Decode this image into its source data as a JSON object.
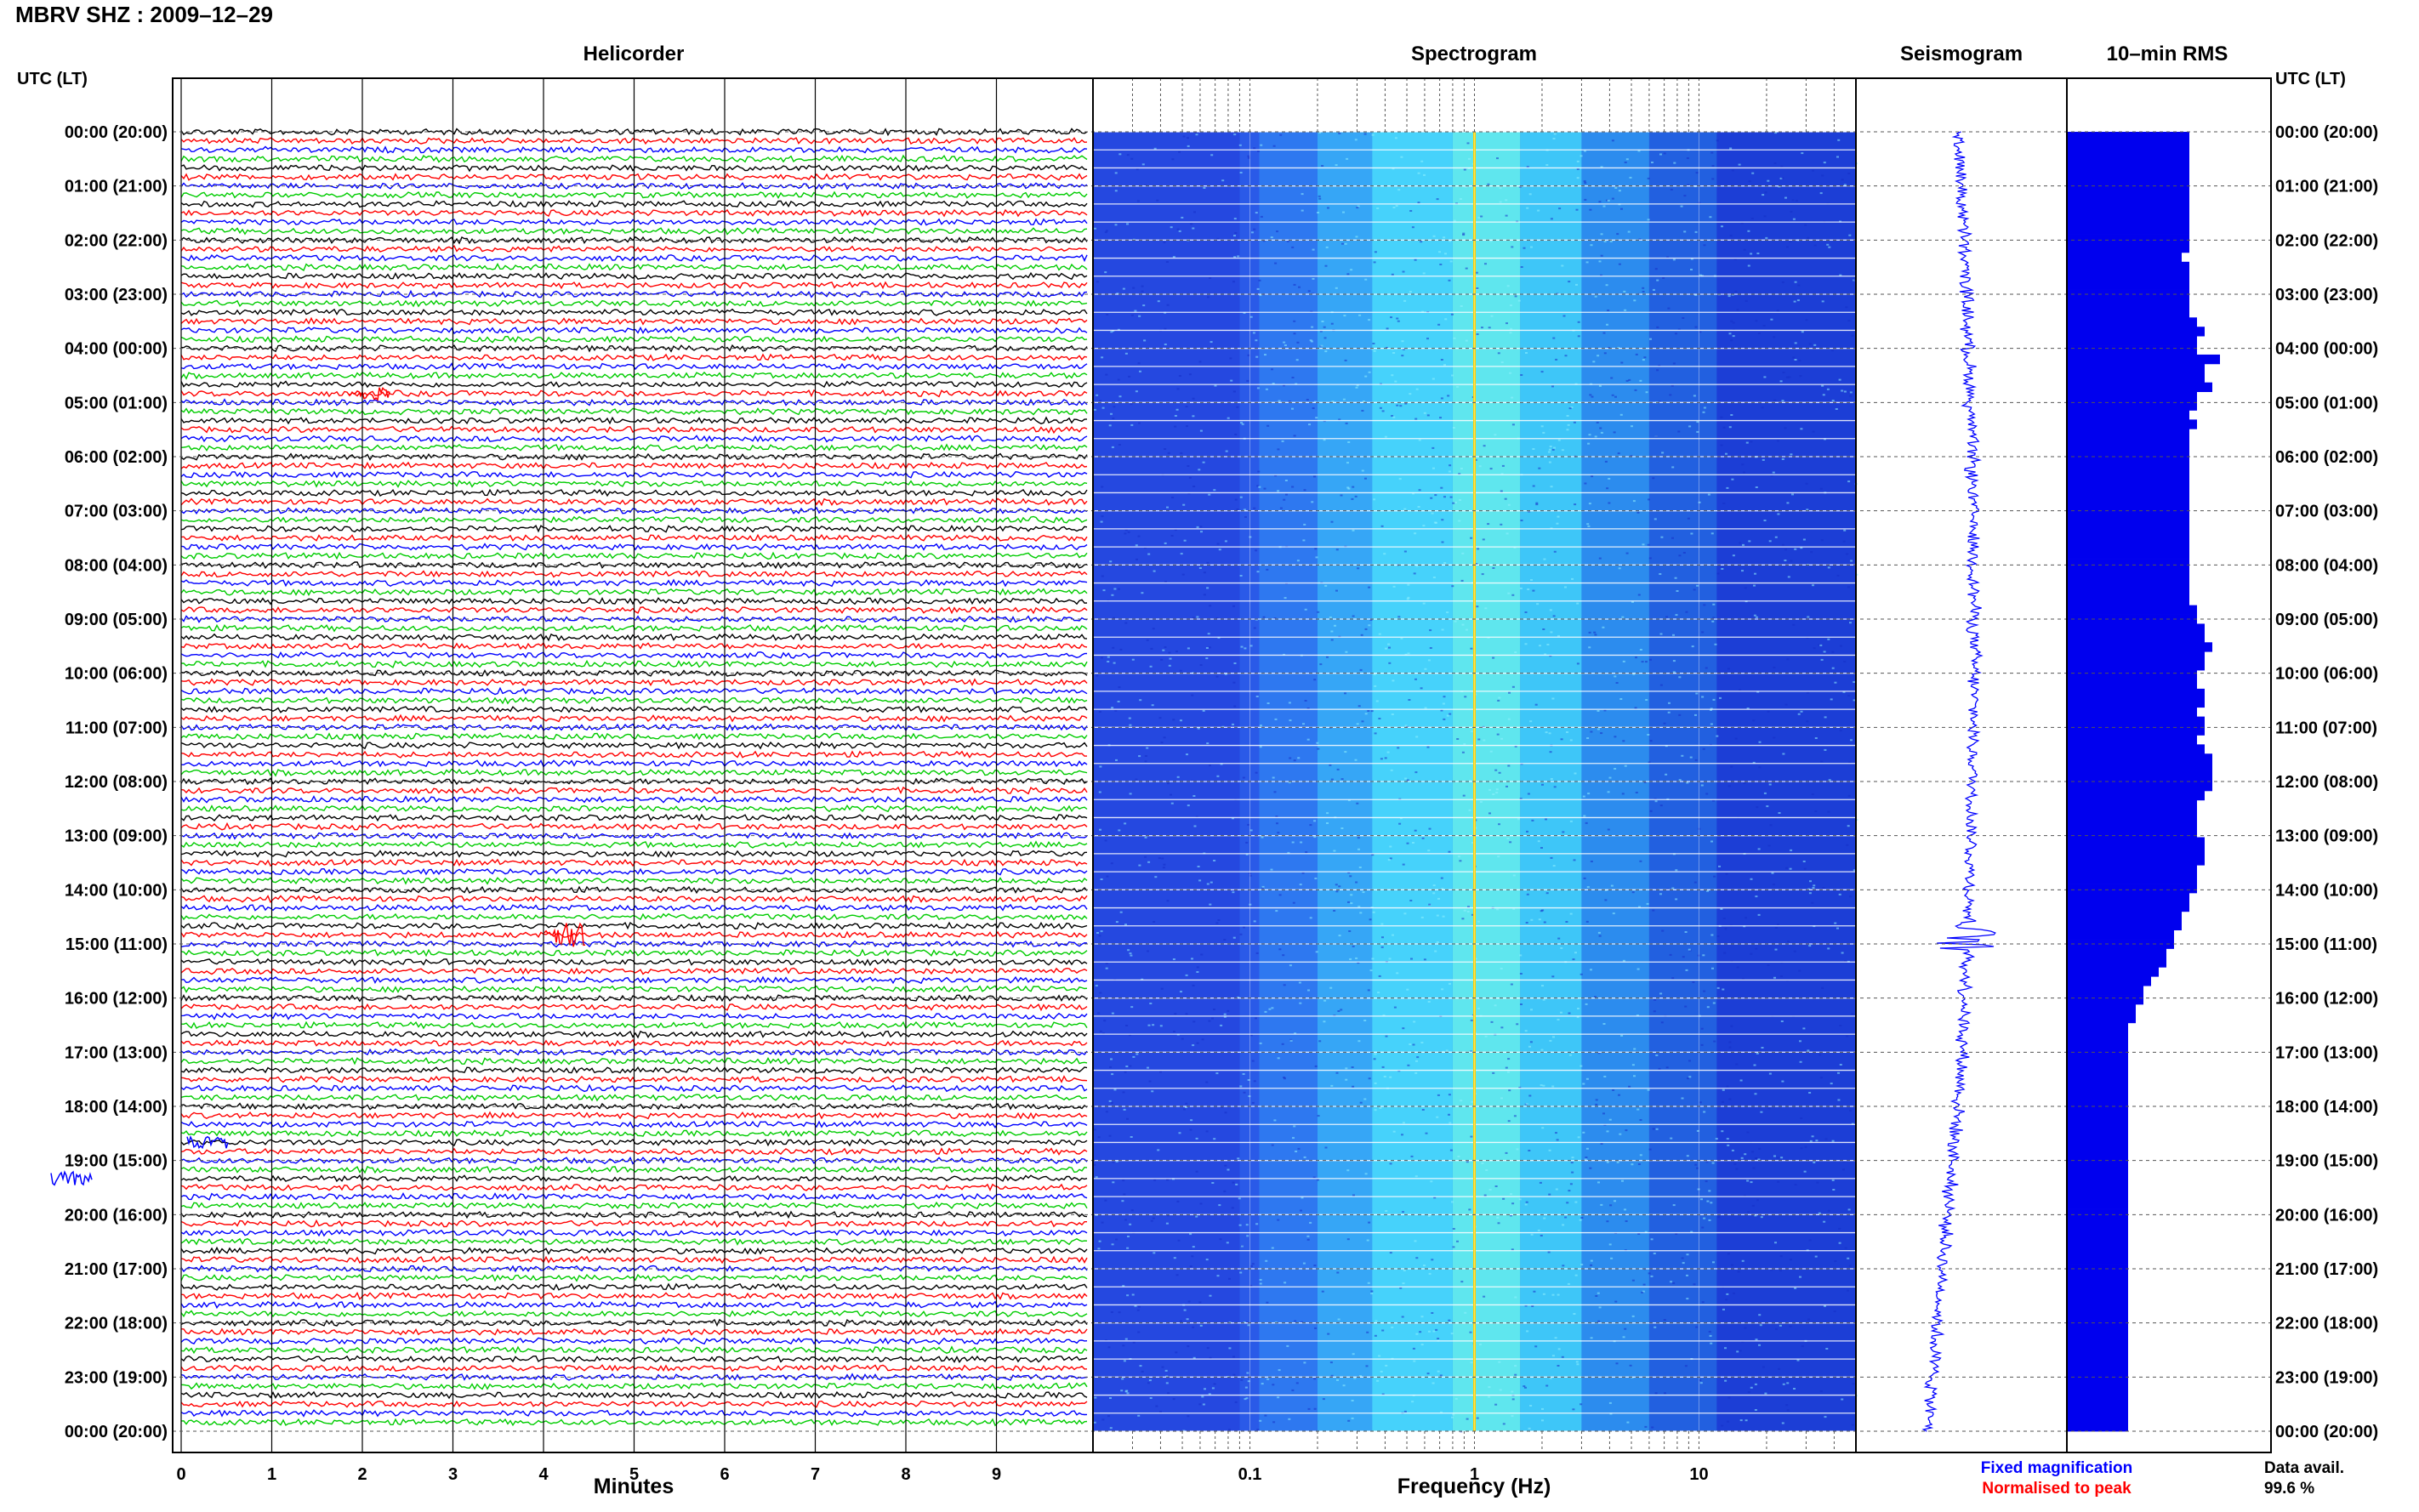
{
  "header": {
    "title": "MBRV SHZ : 2009–12–29",
    "utc_label_left": "UTC (LT)",
    "utc_label_right": "UTC (LT)"
  },
  "panels": {
    "helicorder": "Helicorder",
    "spectrogram": "Spectrogram",
    "seismogram": "Seismogram",
    "rms": "10–min RMS"
  },
  "legend": {
    "fixed": "Fixed magnification",
    "normalised": "Normalised to peak",
    "avail_label": "Data avail.",
    "avail_value": "99.6 %"
  },
  "colors": {
    "trace_cycle": [
      "#000000",
      "#ff0000",
      "#0000ff",
      "#00cc00"
    ],
    "fixed_magnification": "#0000ff",
    "normalised_to_peak": "#ff0000",
    "rms_bar": "#0000ee",
    "spectrogram_low": "#1a2fd0",
    "spectrogram_high": "#40e0ff",
    "spectral_line": "#ffd000"
  },
  "chart_data": [
    {
      "type": "line",
      "title": "Helicorder",
      "xlabel": "Minutes",
      "xlim": [
        0,
        10
      ],
      "xticks": [
        "0",
        "1",
        "2",
        "3",
        "4",
        "5",
        "6",
        "7",
        "8",
        "9"
      ],
      "time_labels": [
        "00:00 (20:00)",
        "01:00 (21:00)",
        "02:00 (22:00)",
        "03:00 (23:00)",
        "04:00 (00:00)",
        "05:00 (01:00)",
        "06:00 (02:00)",
        "07:00 (03:00)",
        "08:00 (04:00)",
        "09:00 (05:00)",
        "10:00 (06:00)",
        "11:00 (07:00)",
        "12:00 (08:00)",
        "13:00 (09:00)",
        "14:00 (10:00)",
        "15:00 (11:00)",
        "16:00 (12:00)",
        "17:00 (13:00)",
        "18:00 (14:00)",
        "19:00 (15:00)",
        "20:00 (16:00)",
        "21:00 (17:00)",
        "22:00 (18:00)",
        "23:00 (19:00)",
        "00:00 (20:00)"
      ],
      "traces_per_hour": 6,
      "grid": true
    },
    {
      "type": "heatmap",
      "title": "Spectrogram",
      "xlabel": "Frequency (Hz)",
      "xscale": "log",
      "xlim": [
        0.02,
        50
      ],
      "xticks": [
        "0.1",
        "1",
        "10"
      ],
      "spectral_line_hz": 1.0
    },
    {
      "type": "line",
      "title": "Seismogram"
    },
    {
      "type": "bar",
      "title": "10–min RMS",
      "orientation": "horizontal",
      "values": [
        8,
        8,
        8,
        8,
        8,
        8,
        8,
        8,
        8,
        8,
        8,
        8,
        8,
        7.5,
        8,
        8,
        8,
        8,
        8,
        8,
        8.5,
        9,
        8.5,
        8.5,
        10,
        9,
        9,
        9.5,
        8.5,
        8.5,
        8,
        8.5,
        8,
        8,
        8,
        8,
        8,
        8,
        8,
        8,
        8,
        8,
        8,
        8,
        8,
        8,
        8,
        8,
        8,
        8,
        8,
        8.5,
        8.5,
        9,
        9,
        9.5,
        9,
        9,
        8.5,
        8.5,
        9,
        9,
        8.5,
        9,
        9,
        8.5,
        9,
        9.5,
        9.5,
        9.5,
        9.5,
        9,
        8.5,
        8.5,
        8.5,
        8.5,
        9,
        9,
        9,
        8.5,
        8.5,
        8.5,
        8,
        8,
        7.5,
        7.5,
        7,
        7,
        6.5,
        6.5,
        6,
        5.5,
        5,
        5,
        4.5,
        4.5,
        4,
        4,
        4,
        4,
        4,
        4,
        4,
        4,
        4,
        4,
        4,
        4,
        4,
        4,
        4,
        4,
        4,
        4,
        4,
        4,
        4,
        4,
        4,
        4,
        4,
        4,
        4,
        4,
        4,
        4,
        4,
        4,
        4,
        4,
        4,
        4,
        4,
        4,
        4,
        4,
        4,
        4,
        4,
        4
      ]
    }
  ]
}
